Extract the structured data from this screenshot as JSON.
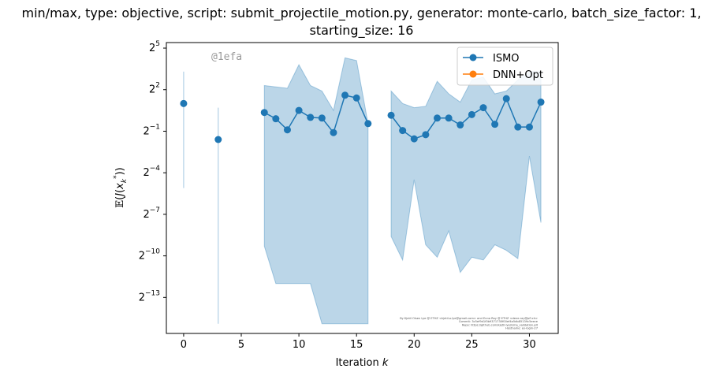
{
  "title_line1": "min/max, type: objective, script: submit_projectile_motion.py, generator: monte-carlo, batch_size_factor: 1,",
  "title_line2": "starting_size: 16",
  "watermark": "@1efa",
  "credits": [
    "By Kjetil Olsen Lye @ ETHZ <kjetil.o.lye@gmail.com> and Enna Ray @ ETHZ <dene.ray@pfl.ch>",
    "Commit: 3c5ef9d1f0b9371730f00ef4a5db85139c5eece",
    "Repo: https://github.com/kjetil-lye/isma_validation.git",
    "Hostname: ex-login-27"
  ],
  "chart_data": {
    "type": "line",
    "xlabel": "Iteration k",
    "ylabel": "𝔼(J(x*k))",
    "xlim": [
      -1.5,
      32.5
    ],
    "ylim_log2": [
      -15.6,
      5.4
    ],
    "y_scale": "log2",
    "x_ticks": [
      0,
      5,
      10,
      15,
      20,
      25,
      30
    ],
    "y_ticks_exponent": [
      -13,
      -10,
      -7,
      -4,
      -1,
      2,
      5
    ],
    "legend_position": "top-right",
    "series": [
      {
        "name": "ISMO",
        "color": "#1f77b4",
        "segments": [
          {
            "x": [
              0
            ],
            "y_log2": [
              1.0
            ],
            "min_log2": [
              -5.1
            ],
            "max_log2": [
              3.3
            ]
          },
          {
            "x": [
              3
            ],
            "y_log2": [
              -1.6
            ],
            "min_log2": [
              -14.9
            ],
            "max_log2": [
              0.7
            ]
          },
          {
            "x": [
              7,
              8,
              9,
              10,
              11,
              12,
              13,
              14,
              15,
              16
            ],
            "y_log2": [
              0.35,
              -0.1,
              -0.9,
              0.5,
              0.0,
              -0.05,
              -1.1,
              1.6,
              1.4,
              -0.45
            ],
            "min_log2": [
              -9.3,
              -12.0,
              -12.0,
              -12.0,
              -12.0,
              -14.9,
              -14.9,
              -14.9,
              -14.9,
              -14.9
            ],
            "max_log2": [
              2.3,
              2.2,
              2.1,
              3.8,
              2.3,
              1.9,
              0.5,
              4.3,
              4.1,
              -0.45
            ]
          },
          {
            "x": [
              18,
              19,
              20,
              21,
              22,
              23,
              24,
              25,
              26,
              27,
              28,
              29,
              30,
              31
            ],
            "y_log2": [
              0.15,
              -0.95,
              -1.55,
              -1.25,
              -0.05,
              -0.05,
              -0.55,
              0.2,
              0.7,
              -0.5,
              1.35,
              -0.7,
              -0.7,
              1.1
            ],
            "min_log2": [
              -8.6,
              -10.3,
              -4.5,
              -9.2,
              -10.1,
              -8.2,
              -11.2,
              -10.1,
              -10.3,
              -9.2,
              -9.6,
              -10.2,
              -2.8,
              -7.6
            ],
            "max_log2": [
              1.9,
              1.0,
              0.7,
              0.8,
              2.6,
              1.7,
              1.1,
              2.7,
              2.9,
              1.7,
              1.9,
              2.7,
              3.3,
              3.3
            ]
          }
        ]
      },
      {
        "name": "DNN+Opt",
        "color": "#ff7f0e",
        "segments": []
      }
    ]
  }
}
